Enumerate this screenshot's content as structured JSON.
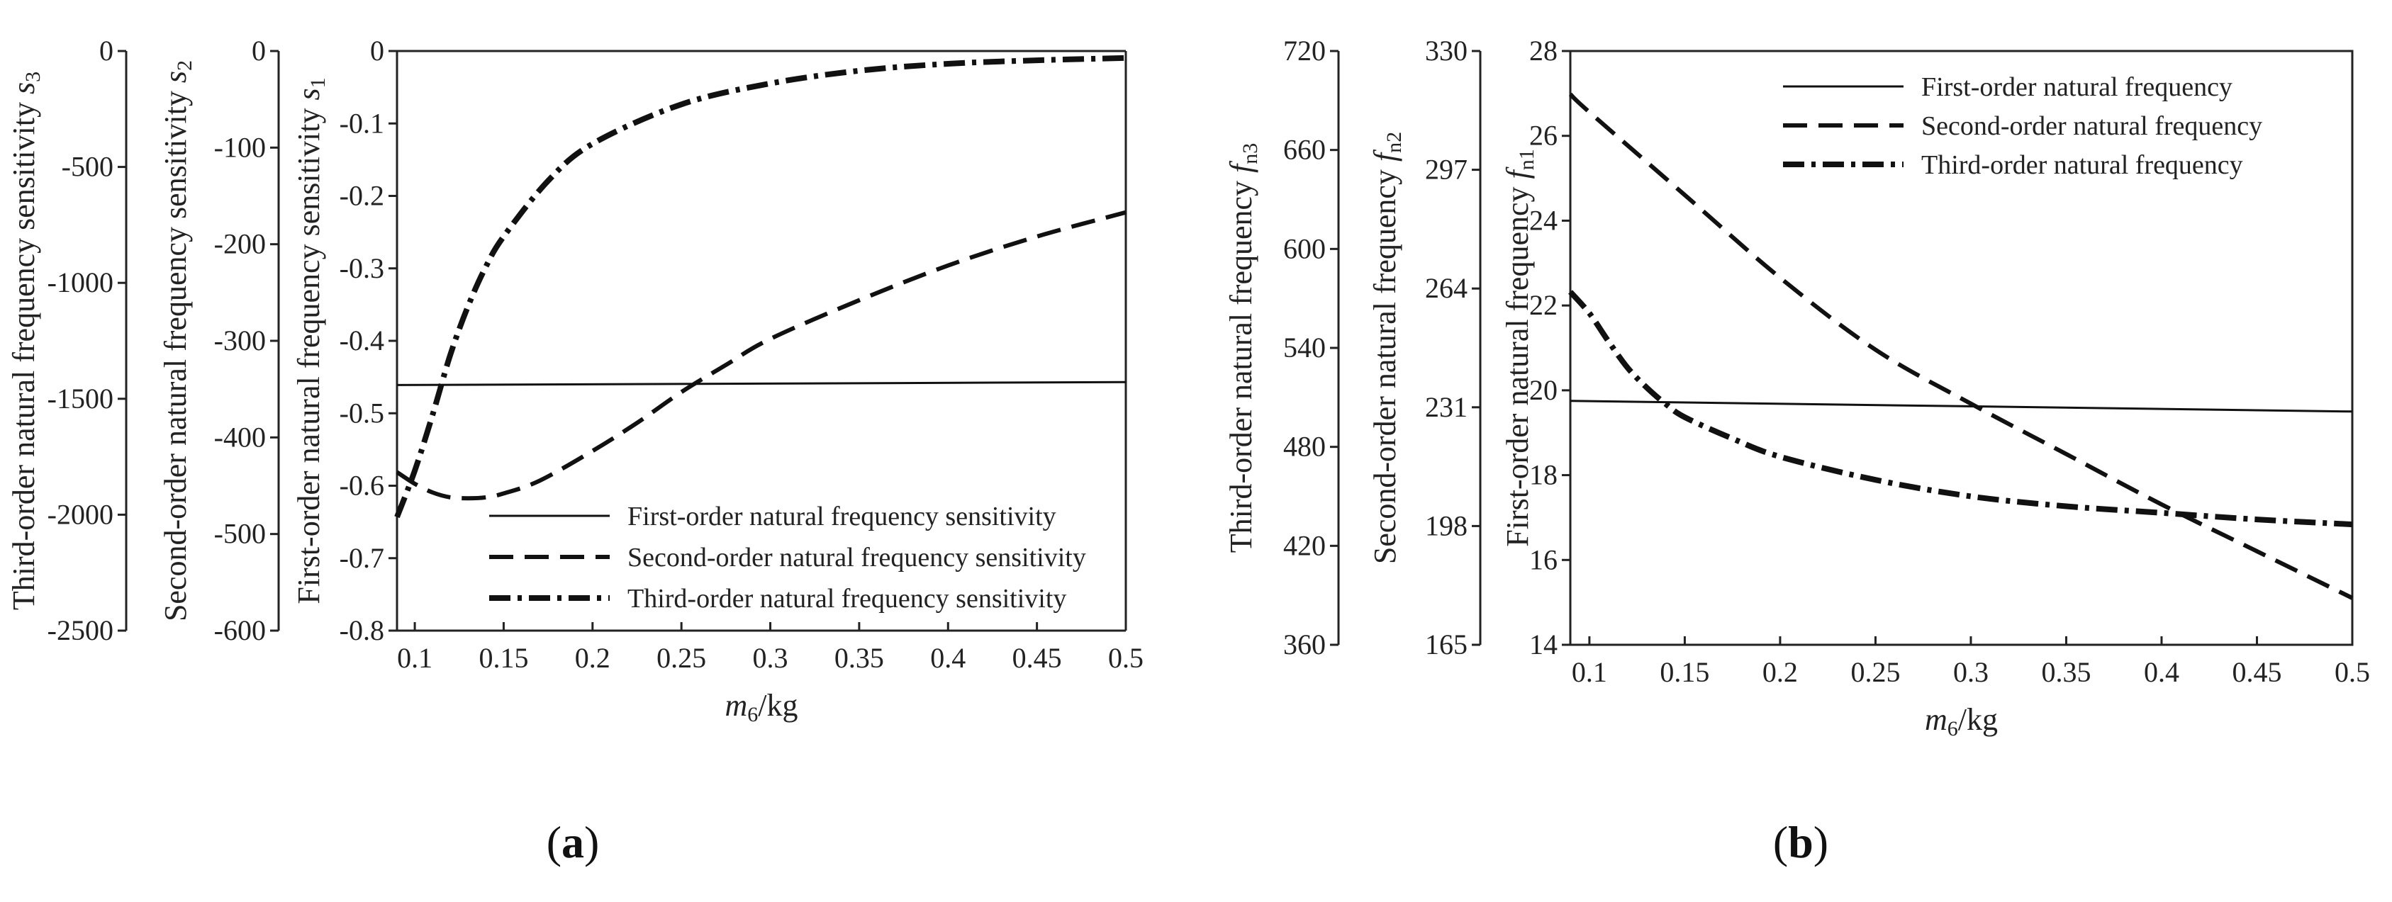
{
  "figure_labels": {
    "a_open": "(",
    "a_letter": "a",
    "a_close": ")",
    "b_open": "(",
    "b_letter": "b",
    "b_close": ")"
  },
  "chart_data": [
    {
      "id": "a",
      "type": "line",
      "xlabel": "m6/kg",
      "xlim": [
        0.09,
        0.5
      ],
      "xticks": [
        0.1,
        0.15,
        0.2,
        0.25,
        0.3,
        0.35,
        0.4,
        0.45,
        0.5
      ],
      "xtick_labels": [
        "0.1",
        "0.15",
        "0.2",
        "0.25",
        "0.3",
        "0.35",
        "0.4",
        "0.45",
        "0.5"
      ],
      "axes": [
        {
          "label": "Third-order natural frequency sensitivity s3",
          "ylim": [
            -2500,
            0
          ],
          "ticks": [
            0,
            -500,
            -1000,
            -1500,
            -2000,
            -2500
          ],
          "tick_labels": [
            "0",
            "-500",
            "-1000",
            "-1500",
            "-2000",
            "-2500"
          ]
        },
        {
          "label": "Second-order natural frequency sensitivity s2",
          "ylim": [
            -600,
            0
          ],
          "ticks": [
            0,
            -100,
            -200,
            -300,
            -400,
            -500,
            -600
          ],
          "tick_labels": [
            "0",
            "-100",
            "-200",
            "-300",
            "-400",
            "-500",
            "-600"
          ]
        },
        {
          "label": "First-order natural frequency sensitivity s1",
          "ylim": [
            -0.8,
            0
          ],
          "ticks": [
            0,
            -0.1,
            -0.2,
            -0.3,
            -0.4,
            -0.5,
            -0.6,
            -0.7,
            -0.8
          ],
          "tick_labels": [
            "0",
            "-0.1",
            "-0.2",
            "-0.3",
            "-0.4",
            "-0.5",
            "-0.6",
            "-0.7",
            "-0.8"
          ]
        }
      ],
      "series": [
        {
          "name": "First-order natural frequency sensitivity",
          "style": "solid",
          "axis": 2,
          "x": [
            0.09,
            0.5
          ],
          "y": [
            -0.461,
            -0.457
          ]
        },
        {
          "name": "Second-order natural frequency sensitivity",
          "style": "dashed",
          "axis": 1,
          "x": [
            0.09,
            0.1,
            0.11,
            0.12,
            0.13,
            0.14,
            0.15,
            0.17,
            0.2,
            0.225,
            0.25,
            0.275,
            0.3,
            0.35,
            0.4,
            0.45,
            0.5
          ],
          "y": [
            -436,
            -448,
            -457,
            -462,
            -463,
            -462,
            -458,
            -445,
            -414,
            -385,
            -353,
            -325,
            -298,
            -258,
            -222,
            -192,
            -167
          ]
        },
        {
          "name": "Third-order natural frequency sensitivity",
          "style": "dashdot",
          "axis": 0,
          "x": [
            0.09,
            0.1,
            0.11,
            0.12,
            0.13,
            0.14,
            0.15,
            0.175,
            0.2,
            0.25,
            0.3,
            0.35,
            0.4,
            0.45,
            0.5
          ],
          "y": [
            -2010,
            -1810,
            -1570,
            -1310,
            -1100,
            -930,
            -800,
            -560,
            -400,
            -230,
            -140,
            -85,
            -55,
            -40,
            -30
          ]
        }
      ]
    },
    {
      "id": "b",
      "type": "line",
      "xlabel": "m6/kg",
      "xlim": [
        0.09,
        0.5
      ],
      "xticks": [
        0.1,
        0.15,
        0.2,
        0.25,
        0.3,
        0.35,
        0.4,
        0.45,
        0.5
      ],
      "xtick_labels": [
        "0.1",
        "0.15",
        "0.2",
        "0.25",
        "0.3",
        "0.35",
        "0.4",
        "0.45",
        "0.5"
      ],
      "axes": [
        {
          "label": "Third-order natural frequency fn3",
          "ylim": [
            360,
            720
          ],
          "ticks": [
            720,
            660,
            600,
            540,
            480,
            420,
            360
          ],
          "tick_labels": [
            "720",
            "660",
            "600",
            "540",
            "480",
            "420",
            "360"
          ]
        },
        {
          "label": "Second-order natural frequency fn2",
          "ylim": [
            165,
            330
          ],
          "ticks": [
            330,
            297,
            264,
            231,
            198,
            165
          ],
          "tick_labels": [
            "330",
            "297",
            "264",
            "231",
            "198",
            "165"
          ]
        },
        {
          "label": "First-order natural frequency fn1",
          "ylim": [
            14,
            28
          ],
          "ticks": [
            28,
            26,
            24,
            22,
            20,
            18,
            16,
            14
          ],
          "tick_labels": [
            "28",
            "26",
            "24",
            "22",
            "20",
            "18",
            "16",
            "14"
          ]
        }
      ],
      "series": [
        {
          "name": "First-order natural frequency",
          "style": "solid",
          "axis": 2,
          "x": [
            0.09,
            0.5
          ],
          "y": [
            19.75,
            19.5
          ]
        },
        {
          "name": "Second-order natural frequency",
          "style": "dashed",
          "axis": 1,
          "x": [
            0.09,
            0.1,
            0.15,
            0.2,
            0.25,
            0.3,
            0.35,
            0.4,
            0.45,
            0.5
          ],
          "y": [
            318,
            313,
            290,
            267,
            247,
            232,
            218,
            204,
            191,
            178
          ]
        },
        {
          "name": "Third-order natural frequency",
          "style": "dashdot",
          "axis": 0,
          "x": [
            0.09,
            0.1,
            0.11,
            0.12,
            0.13,
            0.14,
            0.15,
            0.175,
            0.2,
            0.25,
            0.3,
            0.35,
            0.4,
            0.45,
            0.5
          ],
          "y": [
            574,
            561,
            544,
            528,
            516,
            506,
            498,
            485,
            474,
            460,
            450,
            444,
            440,
            436,
            433
          ]
        }
      ]
    }
  ]
}
